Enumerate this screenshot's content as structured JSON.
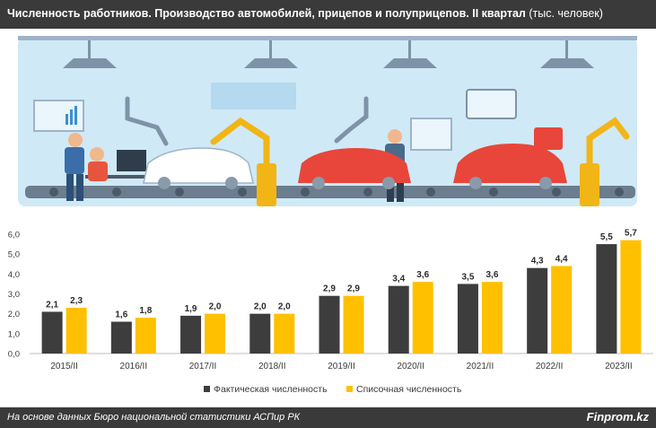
{
  "title": {
    "main": "Численность работников. Производство автомобилей, прицепов и полуприцепов. II квартал",
    "unit": "(тыс. человек)"
  },
  "footer": {
    "source": "На основе данных Бюро национальной статистики АСПир РК",
    "brand": "Finprom.kz"
  },
  "colors": {
    "actual": "#3d3d3d",
    "payroll": "#ffc000",
    "header_bg": "#3a3a3a",
    "illustration_bg": "#c9e6f5"
  },
  "chart_data": {
    "type": "bar",
    "categories": [
      "2015/II",
      "2016/II",
      "2017/II",
      "2018/II",
      "2019/II",
      "2020/II",
      "2021/II",
      "2022/II",
      "2023/II"
    ],
    "series": [
      {
        "name": "Фактическая численность",
        "values": [
          2.1,
          1.6,
          1.9,
          2.0,
          2.9,
          3.4,
          3.5,
          4.3,
          5.5
        ],
        "labels": [
          "2,1",
          "1,6",
          "1,9",
          "2,0",
          "2,9",
          "3,4",
          "3,5",
          "4,3",
          "5,5"
        ]
      },
      {
        "name": "Списочная численность",
        "values": [
          2.3,
          1.8,
          2.0,
          2.0,
          2.9,
          3.6,
          3.6,
          4.4,
          5.7
        ],
        "labels": [
          "2,3",
          "1,8",
          "2,0",
          "2,0",
          "2,9",
          "3,6",
          "3,6",
          "4,4",
          "5,7"
        ]
      }
    ],
    "yticks": [
      "0,0",
      "1,0",
      "2,0",
      "3,0",
      "4,0",
      "5,0",
      "6,0"
    ],
    "ylim": [
      0,
      6
    ],
    "grid": false,
    "legend": "bottom"
  }
}
